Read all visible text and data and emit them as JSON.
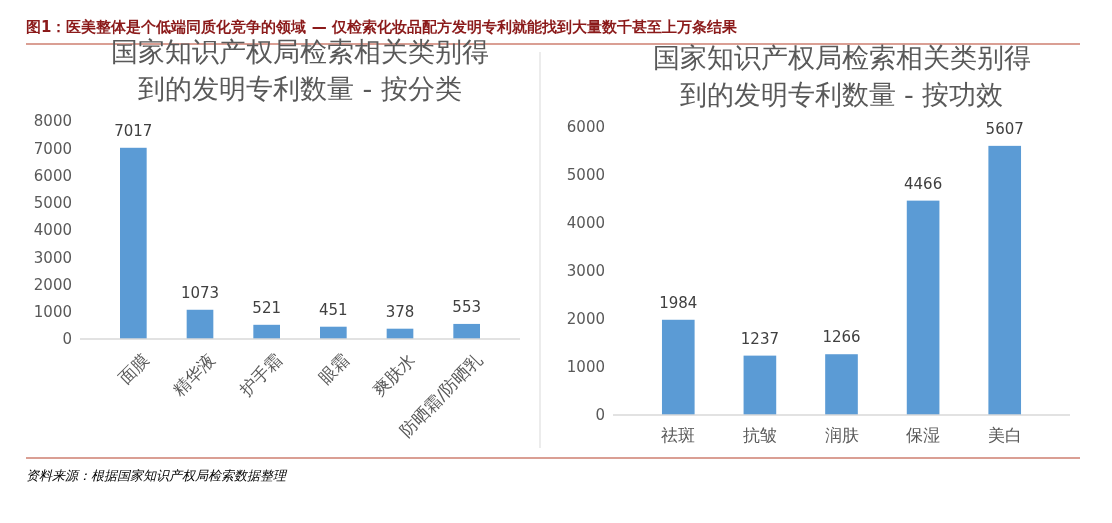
{
  "chart_data": [
    {
      "type": "bar",
      "title": "国家知识产权局检索相关类别得到的发明专利数量 - 按分类",
      "categories": [
        "面膜",
        "精华液",
        "护手霜",
        "眼霜",
        "爽肤水",
        "防晒霜/防晒乳"
      ],
      "values": [
        7017,
        1073,
        521,
        451,
        378,
        553
      ],
      "color": "#5b9bd5",
      "ylim": [
        0,
        8000
      ],
      "yticks": [
        0,
        1000,
        2000,
        3000,
        4000,
        5000,
        6000,
        7000,
        8000
      ],
      "data_labels": true,
      "grid": false,
      "annotations": [
        "图1：医美整体是个低端同质化竞争的领域 — 仅检索化妆品配方发明专利就能找到大量数千甚至上万条结果",
        "资料来源：根据国家知识产权局检索数据整理"
      ]
    },
    {
      "type": "bar",
      "title": "国家知识产权局检索相关类别得到的发明专利数量 - 按功效",
      "categories": [
        "祛斑",
        "抗皱",
        "润肤",
        "保湿",
        "美白"
      ],
      "values": [
        1984,
        1237,
        1266,
        4466,
        5607
      ],
      "color": "#5b9bd5",
      "ylim": [
        0,
        6000
      ],
      "yticks": [
        0,
        1000,
        2000,
        3000,
        4000,
        5000,
        6000
      ],
      "data_labels": true,
      "grid": false
    }
  ]
}
